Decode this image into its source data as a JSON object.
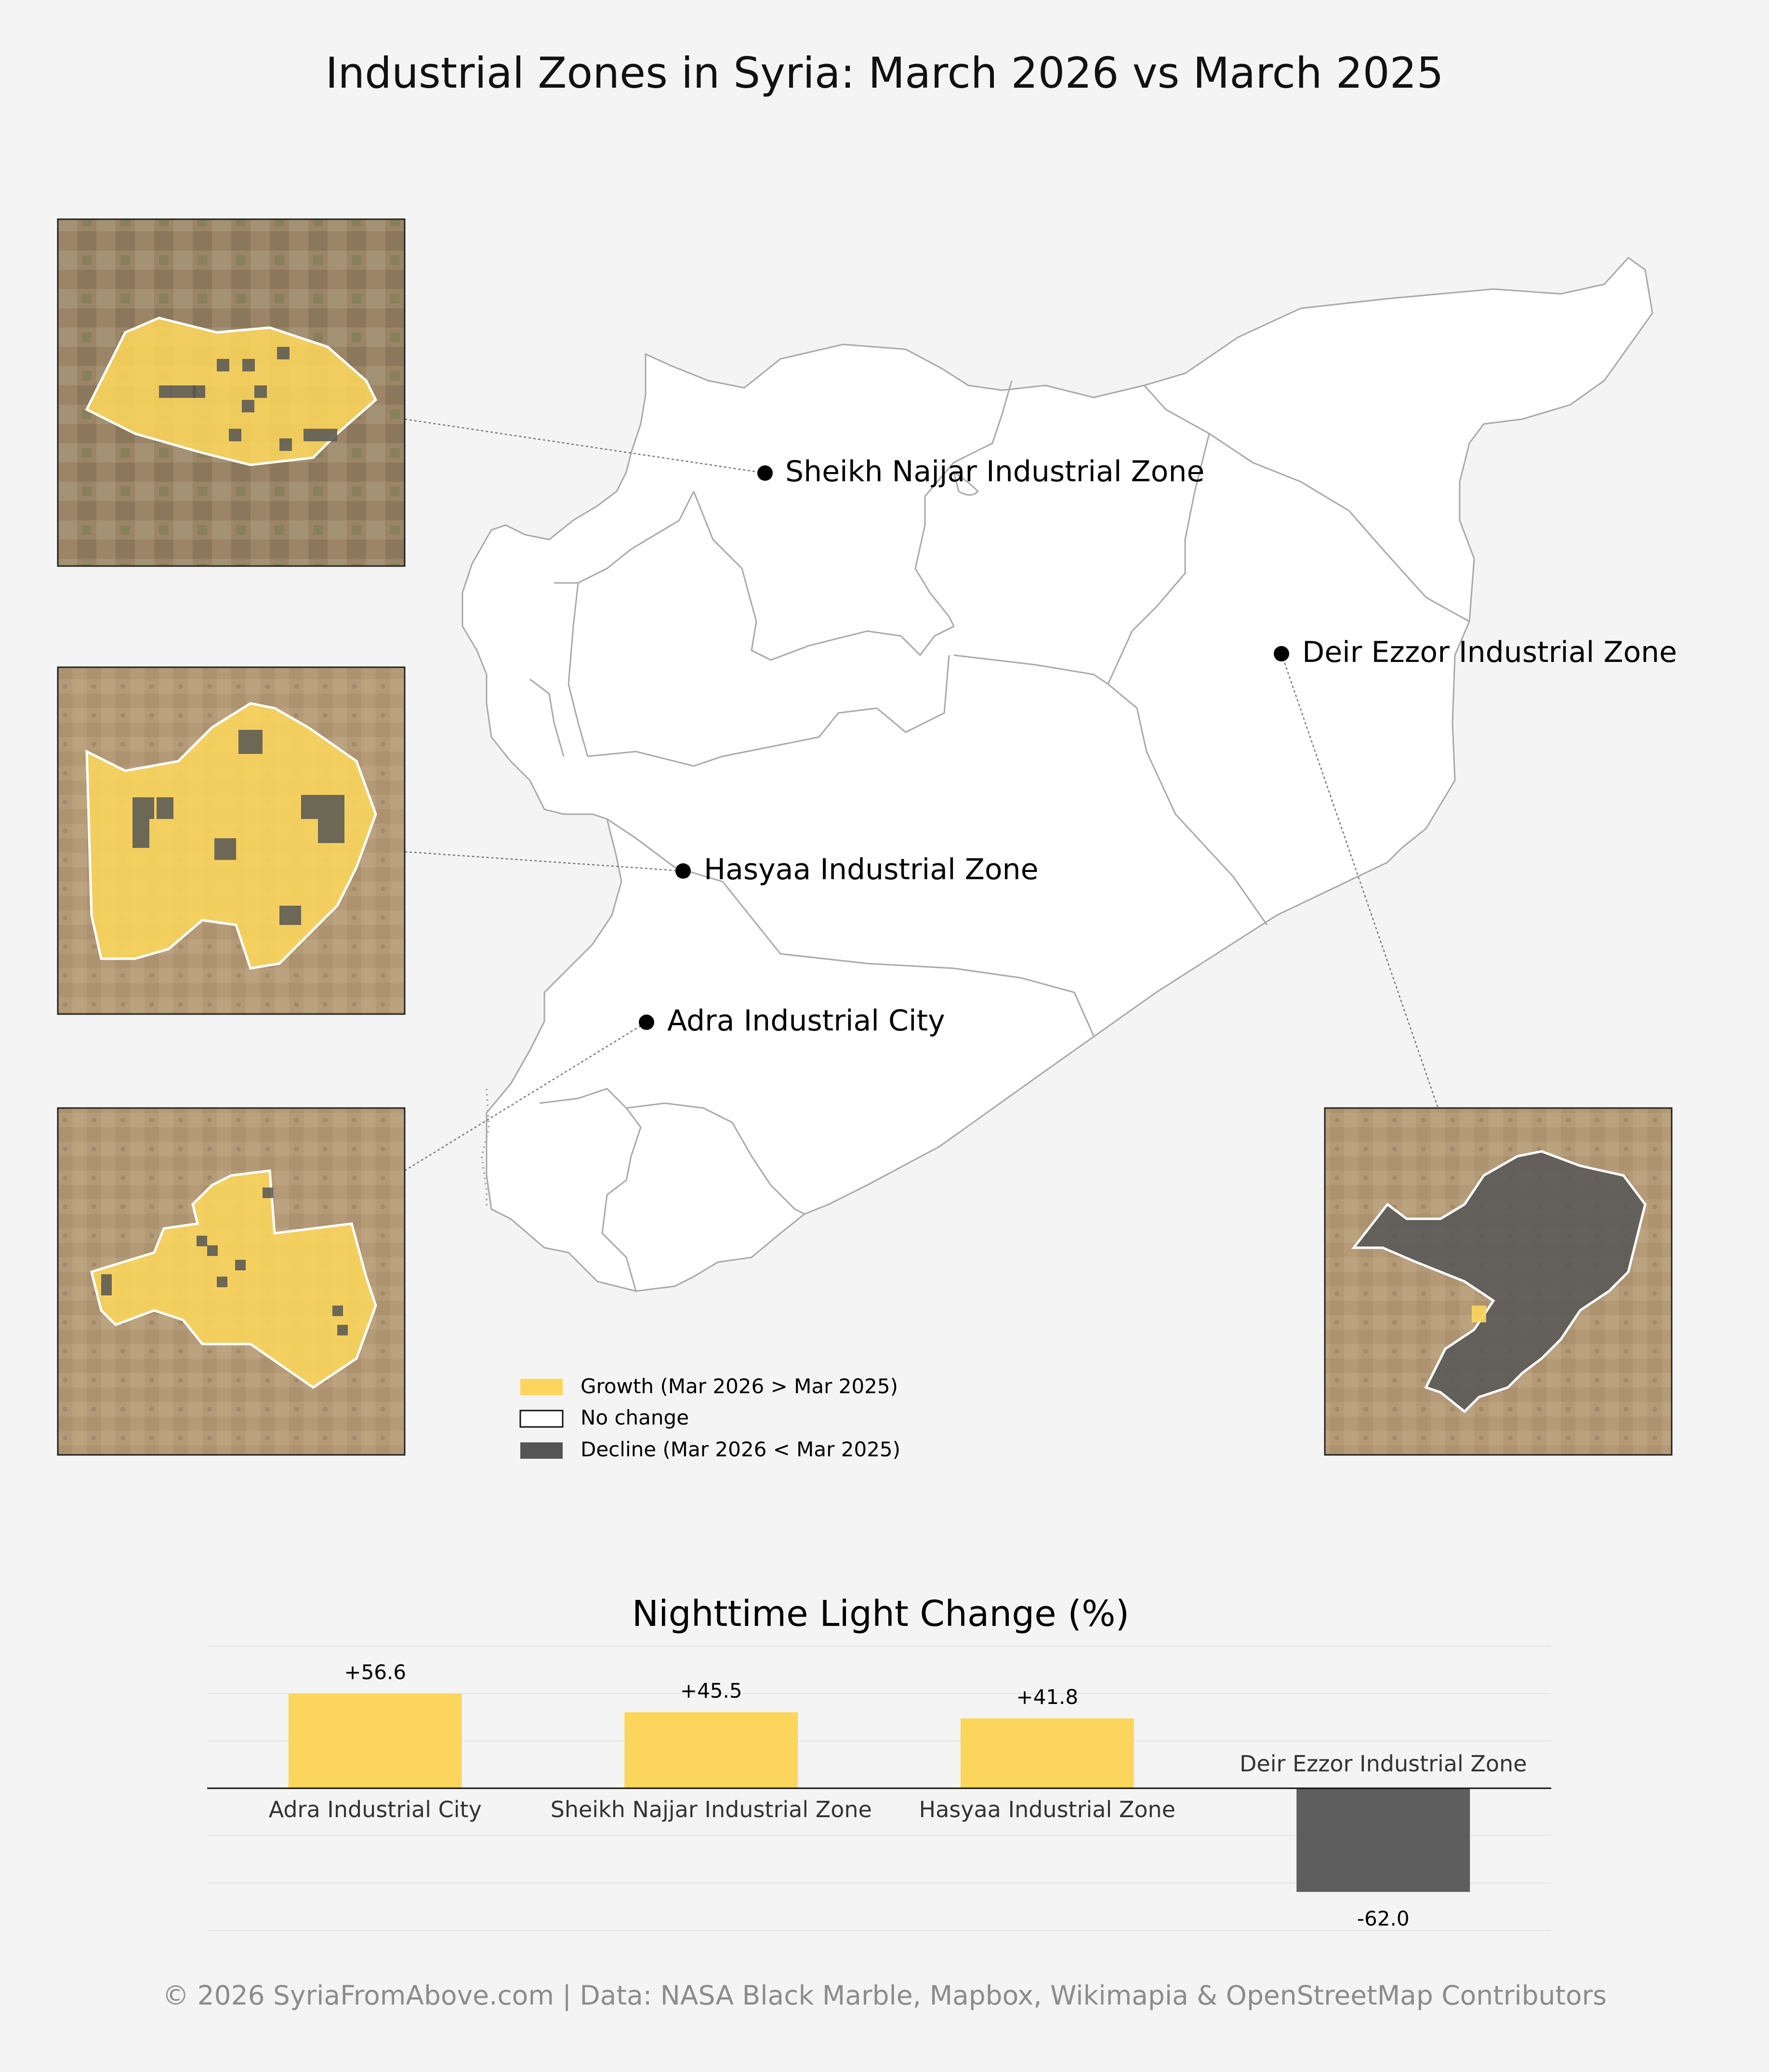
{
  "title": "Industrial Zones in Syria: March 2026 vs March 2025",
  "colors": {
    "growth": "#fcd65c",
    "decline": "#555555",
    "bar_growth": "#fcd65c",
    "bar_decline": "#5e5e5e",
    "background": "#f4f4f4",
    "map_fill": "#ffffff",
    "map_border": "#a8a8a8"
  },
  "zones": [
    {
      "id": "sheikh-najjar",
      "name": "Sheikh Najjar Industrial Zone",
      "status": "growth"
    },
    {
      "id": "deir-ezzor",
      "name": "Deir Ezzor Industrial Zone",
      "status": "decline"
    },
    {
      "id": "hasyaa",
      "name": "Hasyaa Industrial Zone",
      "status": "growth"
    },
    {
      "id": "adra",
      "name": "Adra Industrial City",
      "status": "growth"
    }
  ],
  "legend": {
    "growth": "Growth (Mar 2026 > Mar 2025)",
    "no_change": "No change",
    "decline": "Decline (Mar 2026 < Mar 2025)"
  },
  "chart_data": {
    "type": "bar",
    "title": "Nighttime Light Change (%)",
    "categories": [
      "Adra Industrial City",
      "Sheikh Najjar Industrial Zone",
      "Hasyaa Industrial Zone",
      "Deir Ezzor Industrial Zone"
    ],
    "values": [
      56.6,
      45.5,
      41.8,
      -62.0
    ],
    "value_labels": [
      "+56.6",
      "+45.5",
      "+41.8",
      "-62.0"
    ],
    "ylim": [
      -75,
      75
    ],
    "grid": true,
    "legend": "none"
  },
  "footer": "© 2026 SyriaFromAbove.com | Data: NASA Black Marble, Mapbox, Wikimapia & OpenStreetMap Contributors"
}
